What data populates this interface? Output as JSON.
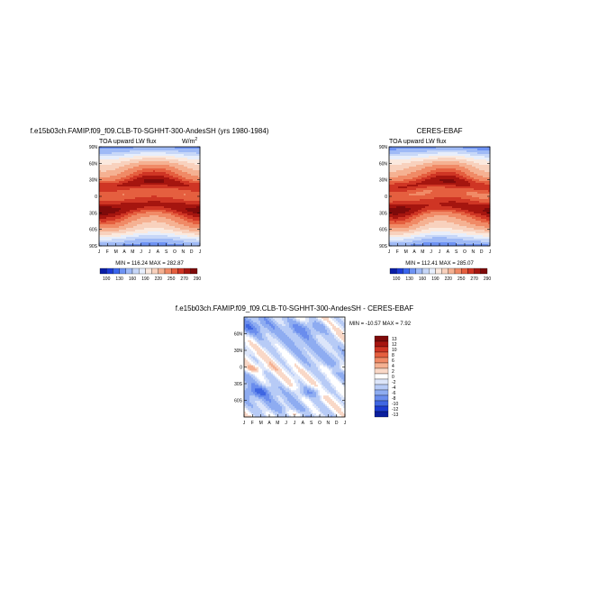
{
  "chart_data": [
    {
      "type": "heatmap",
      "title": "f.e15b03ch.FAMIP.f09_f09.CLB-T0-SGHHT-300-AndesSH (yrs 1980-1984)",
      "left_label": "TOA upward LW flux",
      "units_label": "W/m",
      "units_sup": "2",
      "x_ticks": [
        "J",
        "F",
        "M",
        "A",
        "M",
        "J",
        "J",
        "A",
        "S",
        "O",
        "N",
        "D",
        "J"
      ],
      "y_ticks": [
        "90N",
        "60N",
        "30N",
        "0",
        "30S",
        "60S",
        "90S"
      ],
      "y_range": [
        -90,
        90
      ],
      "stats": "MIN = 116.24 MAX = 282.87",
      "min": 116.24,
      "max": 282.87,
      "colorbar_levels": [
        "100",
        "130",
        "160",
        "190",
        "220",
        "250",
        "270",
        "290"
      ]
    },
    {
      "type": "heatmap",
      "title": "CERES-EBAF",
      "left_label": "TOA upward LW flux",
      "x_ticks": [
        "J",
        "F",
        "M",
        "A",
        "M",
        "J",
        "J",
        "A",
        "S",
        "O",
        "N",
        "D",
        "J"
      ],
      "y_ticks": [
        "90N",
        "60N",
        "30N",
        "0",
        "30S",
        "60S",
        "90S"
      ],
      "y_range": [
        -90,
        90
      ],
      "stats": "MIN = 112.41 MAX = 285.07",
      "min": 112.41,
      "max": 285.07,
      "colorbar_levels": [
        "100",
        "130",
        "160",
        "190",
        "220",
        "250",
        "270",
        "290"
      ]
    },
    {
      "type": "heatmap",
      "title": "f.e15b03ch.FAMIP.f09_f09.CLB-T0-SGHHT-300-AndesSH - CERES-EBAF",
      "x_ticks": [
        "J",
        "F",
        "M",
        "A",
        "M",
        "J",
        "J",
        "A",
        "S",
        "O",
        "N",
        "D",
        "J"
      ],
      "y_ticks": [
        "60N",
        "30N",
        "0",
        "30S",
        "60S"
      ],
      "y_range": [
        -90,
        90
      ],
      "stats": "MIN = -10.57 MAX =   7.92",
      "min": -10.57,
      "max": 7.92,
      "colorbar_levels": [
        "13",
        "12",
        "10",
        "8",
        "6",
        "4",
        "2",
        "0",
        "-2",
        "-4",
        "-6",
        "-8",
        "-10",
        "-12",
        "-13"
      ]
    }
  ],
  "colors": {
    "seq": [
      "#0a1ea6",
      "#1c3bd6",
      "#3a66ee",
      "#6e93f4",
      "#9fbaf6",
      "#c7d7f8",
      "#e7eefb",
      "#fbe9de",
      "#f8d1bd",
      "#f5b192",
      "#f08a66",
      "#e55f3f",
      "#cf3524",
      "#a5150f",
      "#7e0a0a"
    ],
    "diff": [
      "#7e0a0a",
      "#a51510",
      "#cf3524",
      "#e55f3f",
      "#f08a66",
      "#f5b192",
      "#f9d8c7",
      "#ffffff",
      "#dde6fa",
      "#b7cbf6",
      "#8eacf1",
      "#6a8ded",
      "#3f66e2",
      "#1c3bd1",
      "#0a1e9e"
    ]
  }
}
